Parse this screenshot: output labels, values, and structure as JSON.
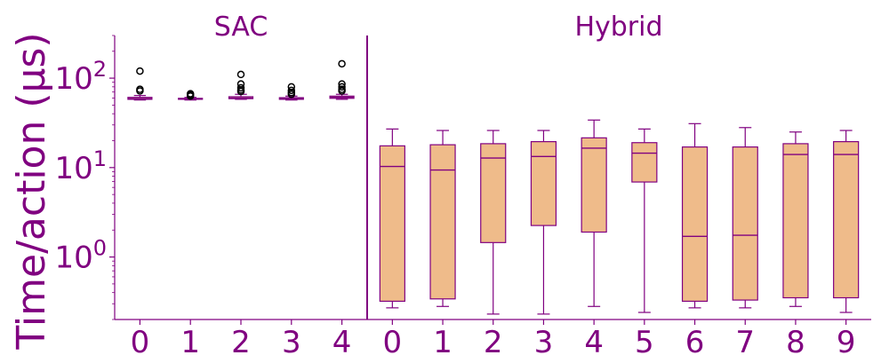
{
  "chart_data": {
    "type": "box",
    "ylabel": "Time/action (µs)",
    "yscale": "log",
    "ylim": [
      0.2,
      300
    ],
    "y_tick_labels": [
      {
        "base": "10",
        "exp": "0",
        "value": 1
      },
      {
        "base": "10",
        "exp": "1",
        "value": 10
      },
      {
        "base": "10",
        "exp": "2",
        "value": 100
      }
    ],
    "colors": {
      "axis": "#800080",
      "box_fill": "#EFBB8A",
      "box_edge": "#800080",
      "flier": "#000000"
    },
    "panels": [
      {
        "title": "SAC",
        "categories": [
          "0",
          "1",
          "2",
          "3",
          "4"
        ],
        "boxes": [
          {
            "category": "0",
            "whislo": 57,
            "q1": 58,
            "median": 59,
            "q3": 61,
            "whishi": 64,
            "fliers": [
              120,
              75,
              72
            ]
          },
          {
            "category": "1",
            "whislo": 57,
            "q1": 58,
            "median": 58.5,
            "q3": 59.5,
            "whishi": 61,
            "fliers": [
              67,
              65,
              63
            ]
          },
          {
            "category": "2",
            "whislo": 58,
            "q1": 59,
            "median": 60,
            "q3": 62,
            "whishi": 66,
            "fliers": [
              110,
              86,
              78,
              74,
              71
            ]
          },
          {
            "category": "3",
            "whislo": 57,
            "q1": 58,
            "median": 59,
            "q3": 60.5,
            "whishi": 63,
            "fliers": [
              80,
              73,
              69,
              66
            ]
          },
          {
            "category": "4",
            "whislo": 58,
            "q1": 59.5,
            "median": 61,
            "q3": 63,
            "whishi": 66,
            "fliers": [
              145,
              86,
              80,
              75,
              72
            ]
          }
        ]
      },
      {
        "title": "Hybrid",
        "categories": [
          "0",
          "1",
          "2",
          "3",
          "4",
          "5",
          "6",
          "7",
          "8",
          "9"
        ],
        "boxes": [
          {
            "category": "0",
            "whislo": 0.27,
            "q1": 0.32,
            "median": 10.3,
            "q3": 17.5,
            "whishi": 27,
            "fliers": []
          },
          {
            "category": "1",
            "whislo": 0.28,
            "q1": 0.34,
            "median": 9.4,
            "q3": 18,
            "whishi": 26,
            "fliers": []
          },
          {
            "category": "2",
            "whislo": 0.23,
            "q1": 1.45,
            "median": 12.8,
            "q3": 18.5,
            "whishi": 26,
            "fliers": []
          },
          {
            "category": "3",
            "whislo": 0.23,
            "q1": 2.25,
            "median": 13.3,
            "q3": 19.5,
            "whishi": 26,
            "fliers": []
          },
          {
            "category": "4",
            "whislo": 0.28,
            "q1": 1.9,
            "median": 16.5,
            "q3": 21.5,
            "whishi": 34,
            "fliers": []
          },
          {
            "category": "5",
            "whislo": 0.24,
            "q1": 6.9,
            "median": 14.5,
            "q3": 19,
            "whishi": 27,
            "fliers": []
          },
          {
            "category": "6",
            "whislo": 0.27,
            "q1": 0.32,
            "median": 1.7,
            "q3": 17,
            "whishi": 31,
            "fliers": []
          },
          {
            "category": "7",
            "whislo": 0.27,
            "q1": 0.33,
            "median": 1.75,
            "q3": 17,
            "whishi": 28,
            "fliers": []
          },
          {
            "category": "8",
            "whislo": 0.28,
            "q1": 0.35,
            "median": 14,
            "q3": 18.5,
            "whishi": 25,
            "fliers": []
          },
          {
            "category": "9",
            "whislo": 0.24,
            "q1": 0.35,
            "median": 14,
            "q3": 19.5,
            "whishi": 26,
            "fliers": []
          }
        ]
      }
    ]
  }
}
